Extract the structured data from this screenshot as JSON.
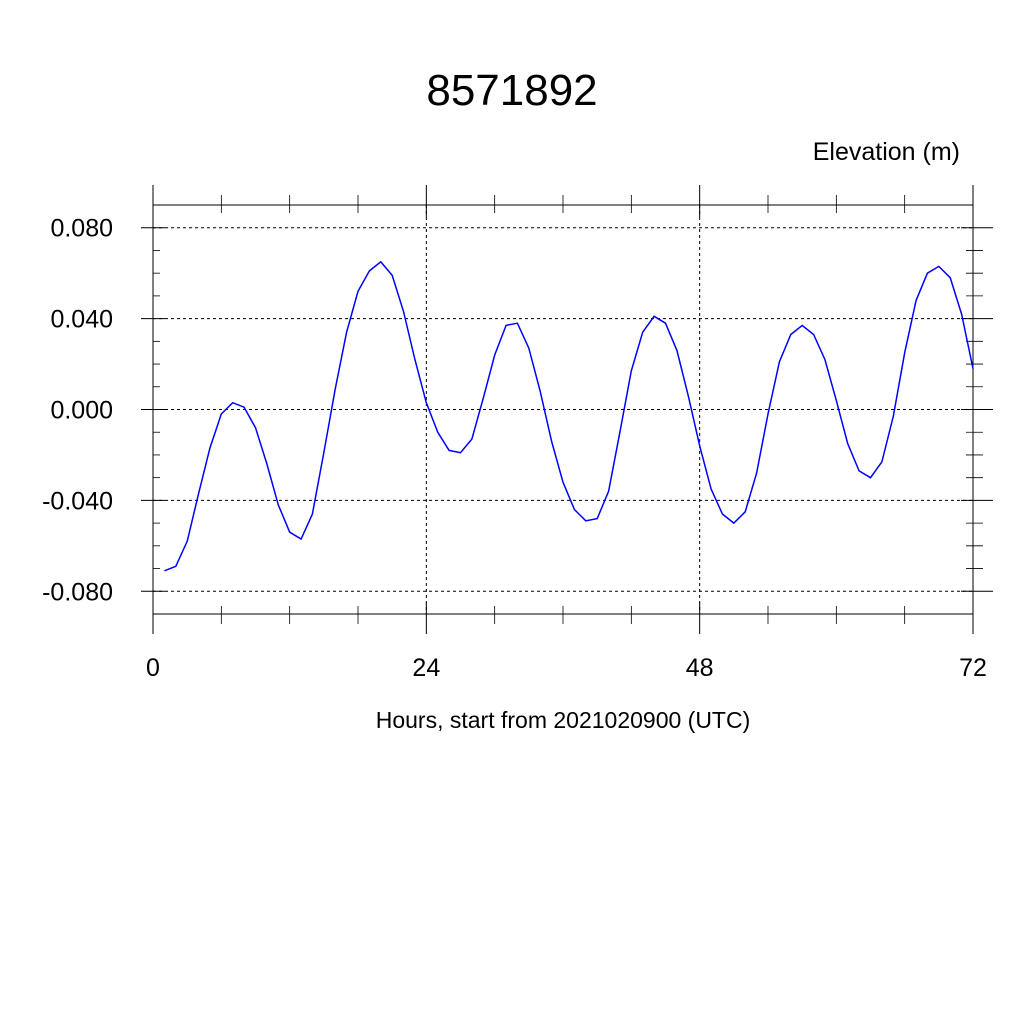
{
  "chart_data": {
    "type": "line",
    "title": "8571892",
    "ylabel": "Elevation (m)",
    "xlabel": "Hours, start from 2021020900 (UTC)",
    "xlim": [
      0,
      72
    ],
    "ylim": [
      -0.09,
      0.09
    ],
    "x_ticks": [
      0,
      24,
      48,
      72
    ],
    "x_tick_labels": [
      "0",
      "24",
      "48",
      "72"
    ],
    "y_ticks": [
      -0.08,
      -0.04,
      0.0,
      0.04,
      0.08
    ],
    "y_tick_labels": [
      "-0.080",
      "-0.040",
      "0.000",
      "0.040",
      "0.080"
    ],
    "grid": true,
    "series": [
      {
        "color": "#0000ff",
        "x": [
          1,
          2,
          3,
          4,
          5,
          6,
          7,
          8,
          9,
          10,
          11,
          12,
          13,
          14,
          15,
          16,
          17,
          18,
          19,
          20,
          21,
          22,
          23,
          24,
          25,
          26,
          27,
          28,
          29,
          30,
          31,
          32,
          33,
          34,
          35,
          36,
          37,
          38,
          39,
          40,
          41,
          42,
          43,
          44,
          45,
          46,
          47,
          48,
          49,
          50,
          51,
          52,
          53,
          54,
          55,
          56,
          57,
          58,
          59,
          60,
          61,
          62,
          63,
          64,
          65,
          66,
          67,
          68,
          69,
          70,
          71,
          72
        ],
        "y": [
          -0.071,
          -0.069,
          -0.058,
          -0.037,
          -0.017,
          -0.002,
          0.003,
          0.001,
          -0.008,
          -0.024,
          -0.042,
          -0.054,
          -0.057,
          -0.046,
          -0.019,
          0.009,
          0.034,
          0.052,
          0.061,
          0.065,
          0.059,
          0.043,
          0.022,
          0.003,
          -0.01,
          -0.018,
          -0.019,
          -0.013,
          0.005,
          0.024,
          0.037,
          0.038,
          0.027,
          0.008,
          -0.014,
          -0.032,
          -0.044,
          -0.049,
          -0.048,
          -0.036,
          -0.01,
          0.017,
          0.034,
          0.041,
          0.038,
          0.026,
          0.006,
          -0.016,
          -0.035,
          -0.046,
          -0.05,
          -0.045,
          -0.028,
          -0.002,
          0.021,
          0.033,
          0.037,
          0.033,
          0.022,
          0.004,
          -0.015,
          -0.027,
          -0.03,
          -0.023,
          -0.003,
          0.025,
          0.048,
          0.06,
          0.063,
          0.058,
          0.042,
          0.018
        ]
      }
    ]
  }
}
